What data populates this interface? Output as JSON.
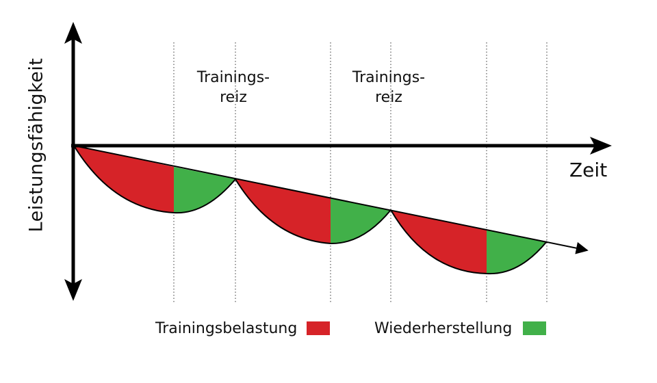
{
  "axes": {
    "y_label": "Leistungsfähigkeit",
    "x_label": "Zeit"
  },
  "annotations": [
    {
      "text": "Trainings-\nreiz"
    },
    {
      "text": "Trainings-\nreiz"
    }
  ],
  "legend": {
    "load_label": "Trainingsbelastung",
    "recovery_label": "Wiederherstellung"
  },
  "colors": {
    "load": "#d62328",
    "recovery": "#41b049",
    "axis": "#000000",
    "guide_lines": "#555555"
  }
}
